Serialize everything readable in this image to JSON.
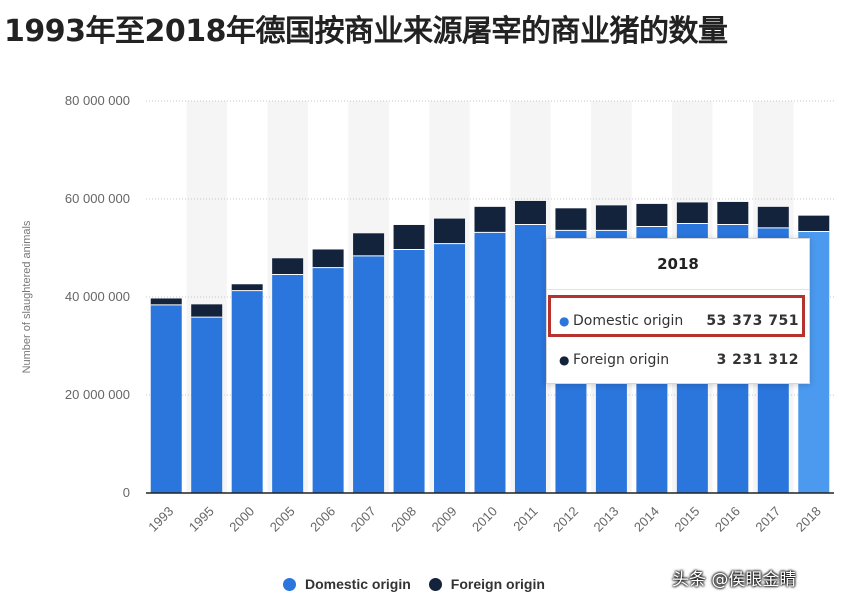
{
  "title": "1993年至2018年德国按商业来源屠宰的商业猪的数量",
  "chart_data": {
    "type": "bar",
    "stacked": true,
    "categories": [
      "1993",
      "1995",
      "2000",
      "2005",
      "2006",
      "2007",
      "2008",
      "2009",
      "2010",
      "2011",
      "2012",
      "2013",
      "2014",
      "2015",
      "2016",
      "2017",
      "2018"
    ],
    "series": [
      {
        "name": "Domestic origin",
        "color": "#2a76dd",
        "values": [
          38400000,
          35900000,
          41300000,
          44600000,
          46000000,
          48400000,
          49700000,
          50900000,
          53200000,
          54800000,
          53600000,
          53600000,
          54400000,
          55000000,
          54800000,
          54100000,
          53373751
        ]
      },
      {
        "name": "Foreign origin",
        "color": "#13233c",
        "values": [
          1300000,
          2600000,
          1300000,
          3300000,
          3700000,
          4600000,
          5000000,
          5100000,
          5200000,
          4800000,
          4500000,
          5100000,
          4600000,
          4300000,
          4600000,
          4300000,
          3231312
        ]
      }
    ],
    "highlight": {
      "category": "2018",
      "color": "#4b9af0"
    },
    "ylabel": "Number of slaughtered animals",
    "ylim": [
      0,
      80000000
    ],
    "yticks": [
      0,
      20000000,
      40000000,
      60000000,
      80000000
    ],
    "ytick_labels": [
      "0",
      "20 000 000",
      "40 000 000",
      "60 000 000",
      "80 000 000"
    ],
    "grid": true,
    "legend_position": "bottom"
  },
  "tooltip": {
    "year": "2018",
    "rows": [
      {
        "label": "Domestic origin",
        "value": "53 373 751"
      },
      {
        "label": "Foreign origin",
        "value": "3 231 312"
      }
    ]
  },
  "legend": [
    {
      "label": "Domestic origin",
      "color": "#2a76dd"
    },
    {
      "label": "Foreign origin",
      "color": "#13233c"
    }
  ],
  "watermark": "头条 @侯眼金睛"
}
